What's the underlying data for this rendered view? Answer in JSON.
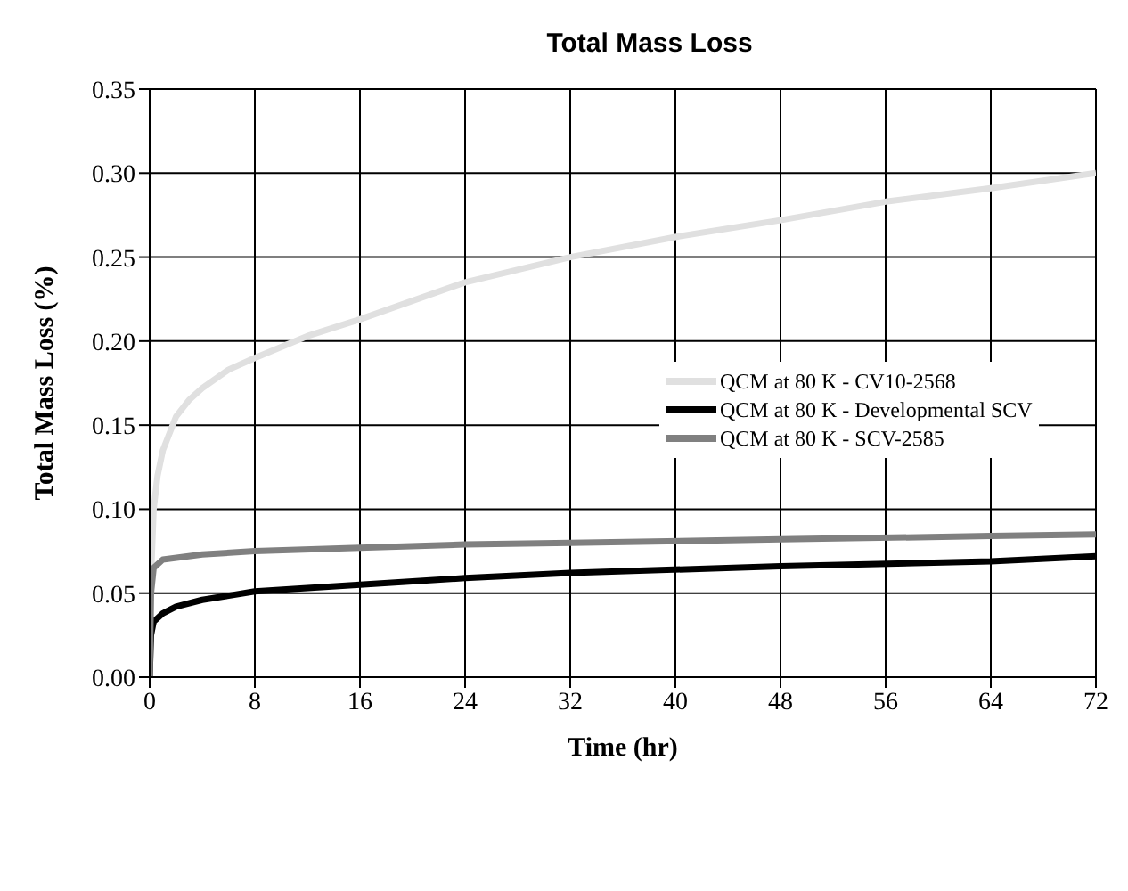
{
  "chart_data": {
    "type": "line",
    "title": "Total Mass Loss",
    "xlabel": "Time (hr)",
    "ylabel": "Total Mass Loss (%)",
    "xlim": [
      0,
      72
    ],
    "xticks": [
      0,
      8,
      16,
      24,
      32,
      40,
      48,
      56,
      64,
      72
    ],
    "ylim": [
      0,
      0.35
    ],
    "yticks": [
      {
        "value": 0,
        "label": "0.00"
      },
      0.05,
      {
        "value": 0.1,
        "label": "0.10"
      },
      0.15,
      {
        "value": 0.2,
        "label": "0.20"
      },
      0.25,
      {
        "value": 0.3,
        "label": "0.30"
      },
      0.35
    ],
    "grid": true,
    "legend": "right",
    "marker": "none",
    "line_style": "solid",
    "series": [
      {
        "name": "QCM at 80 K - CV10-2568",
        "color": "#e0e0e0",
        "x": [
          0,
          0.1,
          0.3,
          0.6,
          1,
          2,
          3,
          4,
          6,
          8,
          12,
          16,
          24,
          32,
          40,
          48,
          56,
          64,
          72
        ],
        "values": [
          0,
          0.06,
          0.1,
          0.12,
          0.135,
          0.155,
          0.165,
          0.172,
          0.183,
          0.19,
          0.203,
          0.213,
          0.235,
          0.25,
          0.262,
          0.272,
          0.283,
          0.291,
          0.3
        ]
      },
      {
        "name": "QCM at 80 K - Developmental SCV",
        "color": "#000000",
        "x": [
          0,
          0.1,
          0.3,
          1,
          2,
          4,
          8,
          16,
          24,
          32,
          48,
          64,
          72
        ],
        "values": [
          0,
          0.025,
          0.033,
          0.038,
          0.042,
          0.046,
          0.051,
          0.055,
          0.059,
          0.062,
          0.066,
          0.069,
          0.072
        ]
      },
      {
        "name": "QCM at 80 K - SCV-2585",
        "color": "#808080",
        "x": [
          0,
          0.1,
          0.3,
          1,
          4,
          8,
          16,
          24,
          32,
          48,
          64,
          72
        ],
        "values": [
          0,
          0.05,
          0.065,
          0.07,
          0.073,
          0.075,
          0.077,
          0.079,
          0.08,
          0.082,
          0.084,
          0.085
        ]
      }
    ]
  }
}
